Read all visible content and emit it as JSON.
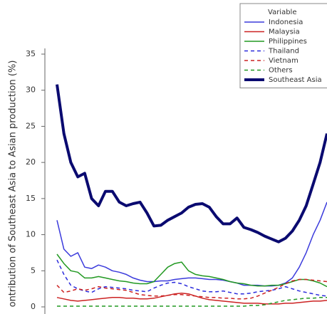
{
  "chart_data": {
    "type": "line",
    "ylabel": "ontribution of Southeast Asia to Asian production (%)",
    "ylim": [
      0,
      35
    ],
    "yticks": [
      0,
      5,
      10,
      15,
      20,
      25,
      30,
      35
    ],
    "grid": false,
    "legend": {
      "title": "Variable",
      "position": "upper right"
    },
    "series": [
      {
        "name": "Indonesia",
        "color": "#3b3bdc",
        "style": "solid",
        "linewidth": 1.5,
        "values": [
          12,
          8,
          7,
          7.5,
          5.5,
          5.3,
          5.8,
          5.5,
          5,
          4.8,
          4.5,
          4,
          3.7,
          3.5,
          3.5,
          3.6,
          3.6,
          3.8,
          3.9,
          4,
          4,
          3.9,
          3.8,
          3.8,
          3.7,
          3.5,
          3.3,
          3,
          3,
          3,
          2.9,
          2.9,
          3,
          3.3,
          4,
          5.5,
          7.5,
          10,
          12,
          14.5
        ]
      },
      {
        "name": "Malaysia",
        "color": "#cc2222",
        "style": "solid",
        "linewidth": 1.5,
        "values": [
          1.3,
          1.1,
          0.9,
          0.8,
          0.9,
          1,
          1.1,
          1.2,
          1.3,
          1.3,
          1.2,
          1.2,
          1.1,
          1.1,
          1.2,
          1.4,
          1.6,
          1.8,
          1.9,
          1.8,
          1.5,
          1.2,
          1,
          0.9,
          0.8,
          0.7,
          0.6,
          0.5,
          0.5,
          0.5,
          0.4,
          0.4,
          0.4,
          0.5,
          0.5,
          0.6,
          0.7,
          0.8,
          0.8,
          0.9
        ]
      },
      {
        "name": "Philippines",
        "color": "#229922",
        "style": "solid",
        "linewidth": 1.5,
        "values": [
          7.3,
          6,
          5,
          4.8,
          4,
          4,
          4.2,
          4,
          3.8,
          3.6,
          3.5,
          3.3,
          3.2,
          3.2,
          3.5,
          4.5,
          5.5,
          6,
          6.2,
          5,
          4.5,
          4.3,
          4.2,
          4,
          3.8,
          3.5,
          3.3,
          3.2,
          3,
          2.9,
          2.9,
          3,
          3,
          3.2,
          3.5,
          3.8,
          3.8,
          3.6,
          3.3,
          2.8
        ]
      },
      {
        "name": "Thailand",
        "color": "#2b2bdc",
        "style": "dashed",
        "linewidth": 1.5,
        "values": [
          6.5,
          4.5,
          3,
          2.5,
          2.2,
          2,
          2.5,
          2.8,
          2.7,
          2.6,
          2.5,
          2.3,
          2.2,
          2.1,
          2.6,
          3,
          3.3,
          3.4,
          3.2,
          2.8,
          2.5,
          2.2,
          2.1,
          2.1,
          2.2,
          2,
          1.8,
          1.8,
          1.9,
          2.1,
          2.2,
          2.3,
          2.5,
          2.8,
          2.5,
          2.2,
          2,
          1.8,
          1.6,
          1.5
        ]
      },
      {
        "name": "Vietnam",
        "color": "#cc2222",
        "style": "dashed",
        "linewidth": 1.5,
        "values": [
          3,
          2,
          2.2,
          2.5,
          2.3,
          2.5,
          2.8,
          2.6,
          2.5,
          2.4,
          2.3,
          2,
          1.7,
          1.6,
          1.5,
          1.5,
          1.6,
          1.7,
          1.7,
          1.6,
          1.5,
          1.4,
          1.3,
          1.3,
          1.2,
          1.2,
          1.1,
          1.1,
          1.2,
          1.5,
          1.9,
          2.3,
          2.7,
          3.2,
          3.6,
          3.8,
          3.8,
          3.7,
          3.6,
          3.5
        ]
      },
      {
        "name": "Others",
        "color": "#229922",
        "style": "dashed",
        "linewidth": 1.5,
        "values": [
          0.1,
          0.1,
          0.1,
          0.1,
          0.1,
          0.1,
          0.1,
          0.1,
          0.1,
          0.1,
          0.1,
          0.1,
          0.1,
          0.1,
          0.1,
          0.1,
          0.1,
          0.1,
          0.1,
          0.1,
          0.1,
          0.1,
          0.1,
          0.1,
          0.1,
          0.1,
          0.1,
          0.1,
          0.2,
          0.2,
          0.3,
          0.5,
          0.7,
          0.9,
          1,
          1.1,
          1.2,
          1.2,
          1.3,
          1.3
        ]
      },
      {
        "name": "Southeast Asia",
        "color": "#0a0a70",
        "style": "solid",
        "linewidth": 4,
        "values": [
          30.8,
          24,
          20,
          18,
          18.5,
          15,
          14,
          16,
          16,
          14.5,
          14,
          14.3,
          14.5,
          13,
          11.2,
          11.3,
          12,
          12.5,
          13,
          13.8,
          14.2,
          14.3,
          13.8,
          12.5,
          11.5,
          11.5,
          12.3,
          11,
          10.7,
          10.3,
          9.8,
          9.4,
          9,
          9.5,
          10.5,
          12,
          14,
          17,
          20,
          24
        ]
      }
    ]
  }
}
